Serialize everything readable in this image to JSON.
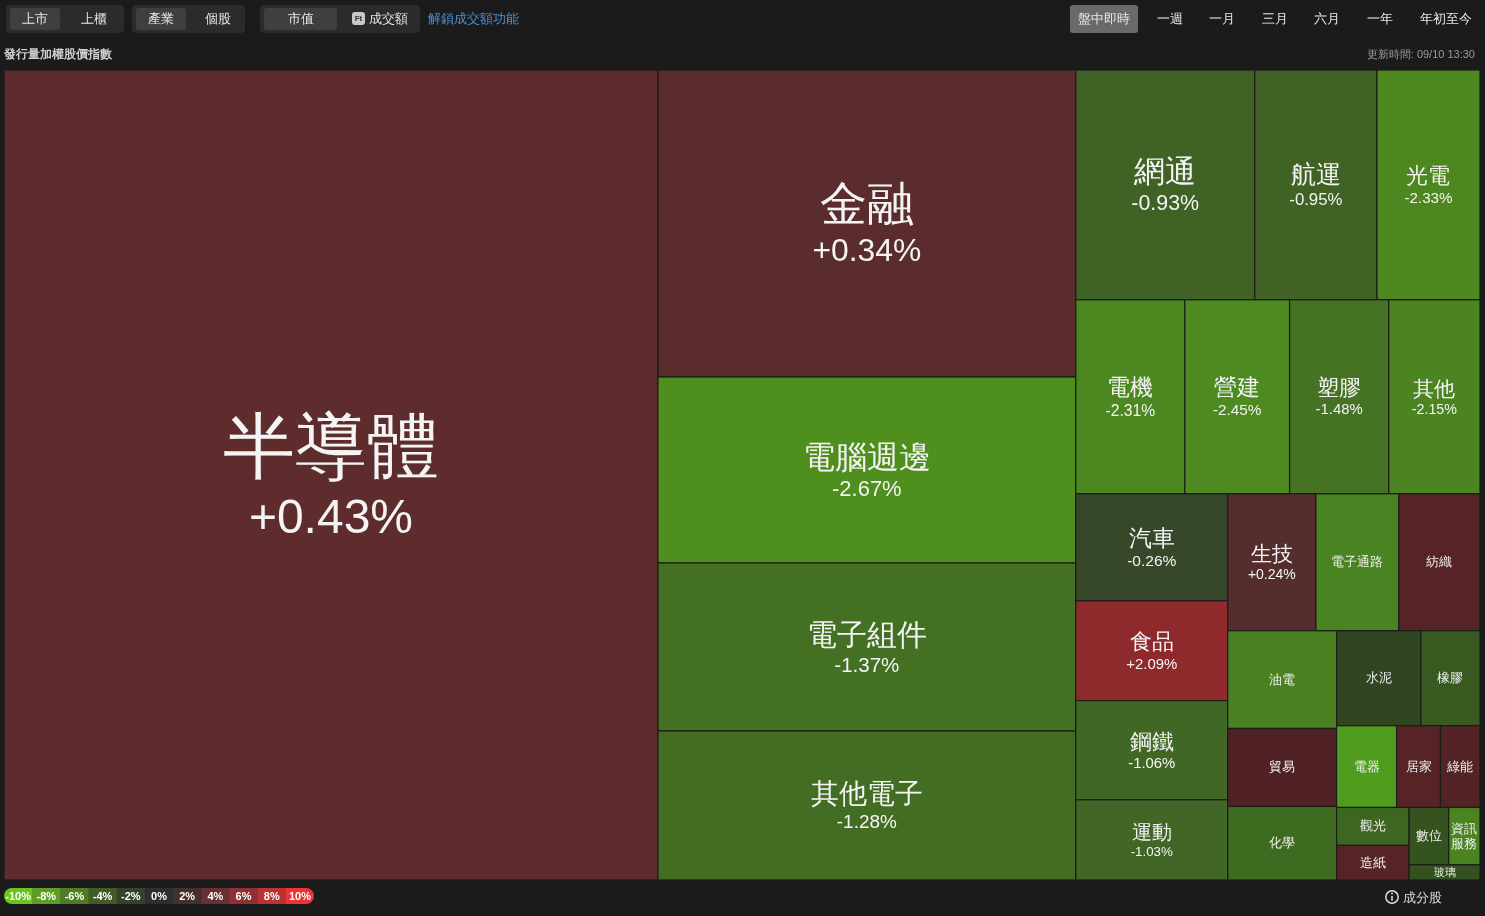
{
  "chart_data": [
    {
      "type": "other",
      "title": "發行量加權股價指數",
      "categories": [
        "半導體",
        "金融",
        "電腦週邊",
        "電子組件",
        "其他電子",
        "網通",
        "航運",
        "光電",
        "電機",
        "營建",
        "塑膠",
        "其他",
        "汽車",
        "食品",
        "鋼鐵",
        "運動",
        "生技",
        "電子通路",
        "紡織",
        "油電",
        "貿易",
        "化學",
        "水泥",
        "橡膠",
        "電器",
        "居家",
        "綠能",
        "觀光",
        "造紙",
        "數位",
        "資訊服務",
        "玻璃"
      ],
      "values": [
        0.43,
        0.34,
        -2.67,
        -1.37,
        -1.28,
        -0.93,
        -0.95,
        -2.33,
        -2.31,
        -2.45,
        -1.48,
        -2.15,
        -0.26,
        2.09,
        -1.06,
        -1.03,
        0.24,
        null,
        null,
        null,
        null,
        null,
        null,
        null,
        null,
        null,
        null,
        null,
        null,
        null,
        null,
        null
      ],
      "value_labels": [
        "+0.43%",
        "+0.34%",
        "-2.67%",
        "-1.37%",
        "-1.28%",
        "-0.93%",
        "-0.95%",
        "-2.33%",
        "-2.31%",
        "-2.45%",
        "-1.48%",
        "-2.15%",
        "-0.26%",
        "+2.09%",
        "-1.06%",
        "-1.03%",
        "+0.24%",
        null,
        null,
        null,
        null,
        null,
        null,
        null,
        null,
        null,
        null,
        null,
        null,
        null,
        null,
        null
      ],
      "colors": [
        null,
        null,
        null,
        null,
        null,
        null,
        null,
        null,
        null,
        null,
        null,
        null,
        null,
        null,
        null,
        null,
        null,
        "#4a8321",
        "#562326",
        "#4a8222",
        "#512225",
        "#3f6b21",
        "#2f4620",
        "#385a20",
        "#509c1e",
        "#562326",
        "#532325",
        "#3d6620",
        "#562326",
        "#34531f",
        "#4a8421",
        "#34521f"
      ],
      "annotations": [
        "上市",
        "上櫃",
        "產業",
        "個股",
        "市值",
        "Ft",
        "成交額",
        "解鎖成交額功能",
        "盤中即時",
        "一週",
        "一月",
        "三月",
        "六月",
        "一年",
        "年初至今",
        "更新時間: 09/10 13:30",
        "成分股"
      ]
    },
    {
      "type": "heatmap",
      "categories": [
        null,
        null,
        null,
        null,
        null,
        null,
        null,
        null,
        null,
        null,
        null
      ],
      "y_categories": [
        null
      ],
      "cells": [
        [
          -10,
          -8,
          -6,
          -4,
          -2,
          0,
          2,
          4,
          6,
          8,
          10
        ]
      ],
      "cell_labels": [
        [
          "-10%",
          "-8%",
          "-6%",
          "-4%",
          "-2%",
          "0%",
          "2%",
          "4%",
          "6%",
          "8%",
          "10%"
        ]
      ]
    }
  ]
}
